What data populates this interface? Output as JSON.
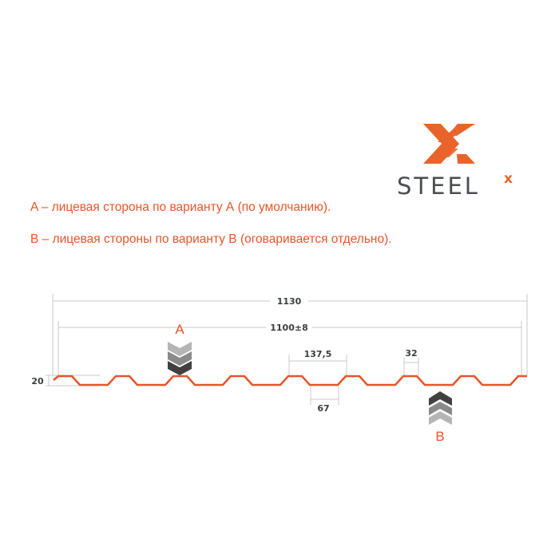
{
  "logo": {
    "brand": "STEELX",
    "accent": "#e8642a",
    "text_color": "#4a4d52"
  },
  "notes": [
    "A – лицевая сторона по варианту А (по умолчанию).",
    "B – лицевая стороны по варианту В (оговаривается отдельно)."
  ],
  "dimensions": {
    "total_width": "1130",
    "useful_width": "1100±8",
    "height": "20",
    "pitch": "137,5",
    "bottom_flat": "67",
    "top_flat": "32"
  },
  "sides": {
    "a": "A",
    "b": "B"
  },
  "colors": {
    "profile": "#e8542a",
    "dim_lines": "#c8c8c8",
    "text": "#3a3d40"
  }
}
